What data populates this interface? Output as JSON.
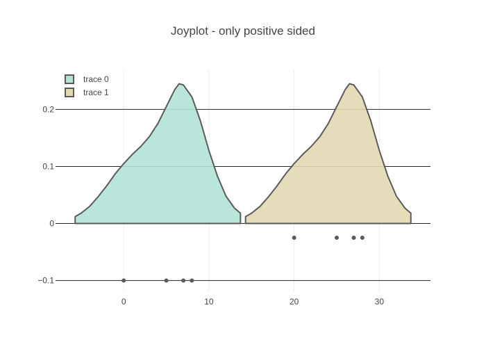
{
  "chart_data": {
    "type": "violin",
    "title": "Joyplot - only positive sided",
    "xlabel": "",
    "ylabel": "",
    "xlim": [
      -8,
      36
    ],
    "ylim": [
      -0.12,
      0.27
    ],
    "x_ticks": [
      0,
      10,
      20,
      30
    ],
    "x_tick_labels": [
      "0",
      "10",
      "20",
      "30"
    ],
    "y_ticks": [
      -0.1,
      0,
      0.1,
      0.2
    ],
    "y_tick_labels": [
      "−0.1",
      "0",
      "0.1",
      "0.2"
    ],
    "grid": {
      "horizontal": true,
      "vertical": true
    },
    "legend": {
      "placement": "top-left"
    },
    "side": "positive",
    "series": [
      {
        "name": "trace 0",
        "points": [
          0,
          5,
          7,
          8
        ],
        "point_y": -0.1,
        "fill_color": "#b3e2d7",
        "line_color": "#5a5a5a",
        "density": [
          [
            -5.7,
            0.012
          ],
          [
            -5,
            0.018
          ],
          [
            -4,
            0.03
          ],
          [
            -3,
            0.047
          ],
          [
            -2,
            0.066
          ],
          [
            -1,
            0.087
          ],
          [
            0,
            0.105
          ],
          [
            1,
            0.121
          ],
          [
            2,
            0.135
          ],
          [
            3,
            0.152
          ],
          [
            4,
            0.175
          ],
          [
            5,
            0.205
          ],
          [
            6,
            0.235
          ],
          [
            6.5,
            0.245
          ],
          [
            7,
            0.243
          ],
          [
            8,
            0.222
          ],
          [
            9,
            0.18
          ],
          [
            10,
            0.128
          ],
          [
            11,
            0.083
          ],
          [
            12,
            0.048
          ],
          [
            13,
            0.027
          ],
          [
            13.7,
            0.018
          ]
        ]
      },
      {
        "name": "trace 1",
        "points": [
          20,
          25,
          27,
          28
        ],
        "point_y": -0.025,
        "fill_color": "#e2d9b3",
        "line_color": "#5a5a5a",
        "density": [
          [
            14.3,
            0.012
          ],
          [
            15,
            0.018
          ],
          [
            16,
            0.03
          ],
          [
            17,
            0.047
          ],
          [
            18,
            0.066
          ],
          [
            19,
            0.087
          ],
          [
            20,
            0.105
          ],
          [
            21,
            0.121
          ],
          [
            22,
            0.135
          ],
          [
            23,
            0.152
          ],
          [
            24,
            0.175
          ],
          [
            25,
            0.205
          ],
          [
            26,
            0.235
          ],
          [
            26.5,
            0.245
          ],
          [
            27,
            0.243
          ],
          [
            28,
            0.222
          ],
          [
            29,
            0.18
          ],
          [
            30,
            0.128
          ],
          [
            31,
            0.083
          ],
          [
            32,
            0.048
          ],
          [
            33,
            0.027
          ],
          [
            33.7,
            0.018
          ]
        ]
      }
    ]
  }
}
